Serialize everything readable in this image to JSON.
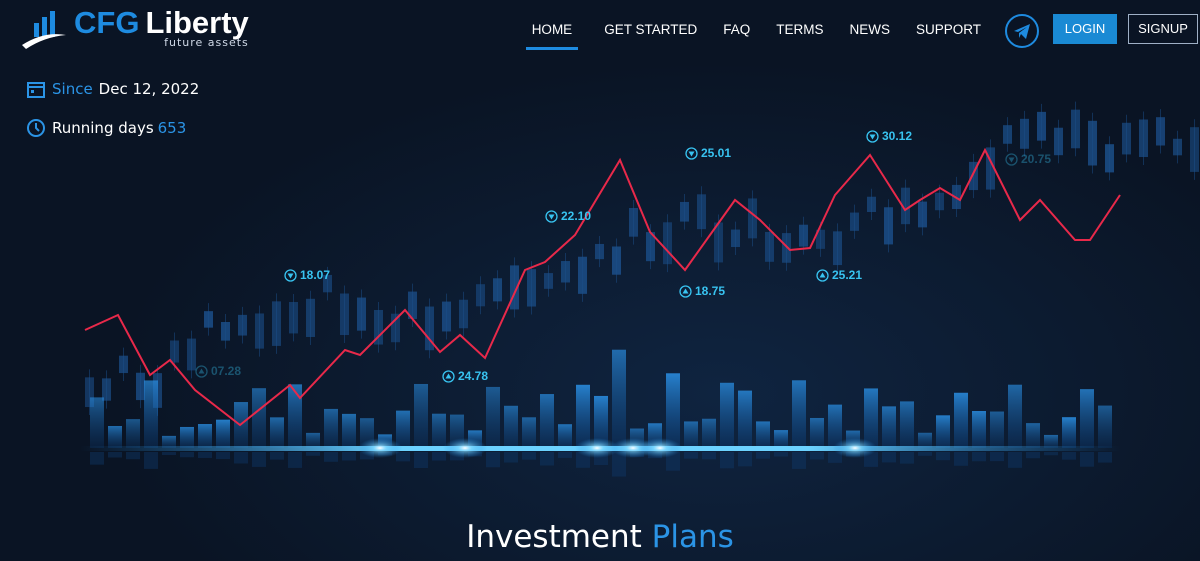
{
  "logo": {
    "brand_prefix": "CFG",
    "brand_suffix": "Liberty",
    "tagline": "future assets"
  },
  "nav": {
    "items": [
      "HOME",
      "GET STARTED",
      "FAQ",
      "TERMS",
      "NEWS",
      "SUPPORT"
    ],
    "login": "LOGIN",
    "signup": "SIGNUP"
  },
  "stats": {
    "since_label": "Since",
    "since_value": "Dec 12, 2022",
    "running_label": "Running days",
    "running_value": "653"
  },
  "hero": {
    "price_labels": [
      {
        "text": "07.28",
        "dir": "up"
      },
      {
        "text": "18.07",
        "dir": "down"
      },
      {
        "text": "24.78",
        "dir": "up"
      },
      {
        "text": "22.10",
        "dir": "down"
      },
      {
        "text": "18.75",
        "dir": "up"
      },
      {
        "text": "25.01",
        "dir": "down"
      },
      {
        "text": "25.21",
        "dir": "up"
      },
      {
        "text": "30.12",
        "dir": "down"
      },
      {
        "text": "20.75",
        "dir": "down"
      }
    ]
  },
  "section": {
    "title_first": "Investment",
    "title_second": "Plans"
  }
}
